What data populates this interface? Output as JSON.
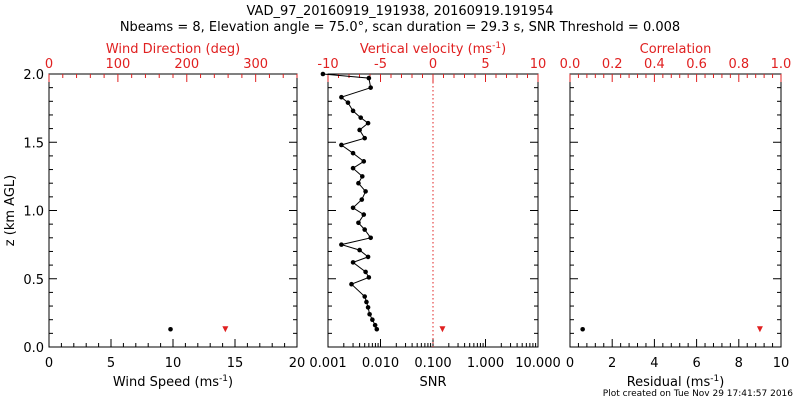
{
  "header": {
    "title": "VAD_97_20160919_191938, 20160919.191954",
    "subtitle": "Nbeams = 8, Elevation angle = 75.0°, scan duration = 29.3 s, SNR Threshold = 0.008"
  },
  "footer": {
    "created": "Plot created on Tue Nov 29 17:41:57 2016"
  },
  "colors": {
    "axis": "#000000",
    "secondary": "#e02020"
  },
  "chart_data": [
    {
      "type": "scatter",
      "panel": "wind",
      "ylabel": "z (km AGL)",
      "ylim": [
        0,
        2
      ],
      "y_ticks": [
        0.0,
        0.5,
        1.0,
        1.5,
        2.0
      ],
      "y_tick_labels": [
        "0.0",
        "0.5",
        "1.0",
        "1.5",
        "2.0"
      ],
      "xlabel": "Wind Speed (ms",
      "xlabel_sup": "-1",
      "xlabel_post": ")",
      "xlim": [
        0,
        20
      ],
      "x_ticks": [
        0,
        5,
        10,
        15,
        20
      ],
      "x_tick_labels": [
        "0",
        "5",
        "10",
        "15",
        "20"
      ],
      "top_label": "Wind Direction (deg)",
      "top_lim": [
        0,
        360
      ],
      "top_ticks": [
        0,
        100,
        200,
        300
      ],
      "top_tick_labels": [
        "0",
        "100",
        "200",
        "300"
      ],
      "series": [
        {
          "axis": "bottom",
          "color": "#000000",
          "points": [
            [
              9.8,
              0.13
            ]
          ]
        },
        {
          "axis": "top",
          "color": "#e02020",
          "points": [
            [
              256,
              0.13
            ]
          ]
        }
      ]
    },
    {
      "type": "line",
      "panel": "snr",
      "ylim": [
        0,
        2
      ],
      "xlabel": "SNR",
      "xscale": "log",
      "xlim": [
        0.001,
        10
      ],
      "x_ticks": [
        0.001,
        0.01,
        0.1,
        1,
        10
      ],
      "x_tick_labels": [
        "0.001",
        "0.010",
        "0.100",
        "1.000",
        "10.000"
      ],
      "top_label": "Vertical velocity (ms",
      "top_label_sup": "-1",
      "top_label_post": ")",
      "top_lim": [
        -10,
        10
      ],
      "top_ticks": [
        -10,
        -5,
        0,
        5,
        10
      ],
      "top_tick_labels": [
        "-10",
        "-5",
        "0",
        "5",
        "10"
      ],
      "zero_line": 0,
      "series": [
        {
          "axis": "bottom",
          "color": "#000000",
          "points": [
            [
              0.0085,
              0.13
            ],
            [
              0.0079,
              0.16
            ],
            [
              0.007,
              0.2
            ],
            [
              0.0062,
              0.24
            ],
            [
              0.0058,
              0.29
            ],
            [
              0.0054,
              0.33
            ],
            [
              0.005,
              0.37
            ],
            [
              0.0028,
              0.46
            ],
            [
              0.006,
              0.51
            ],
            [
              0.0052,
              0.55
            ],
            [
              0.003,
              0.62
            ],
            [
              0.0058,
              0.66
            ],
            [
              0.004,
              0.71
            ],
            [
              0.0018,
              0.75
            ],
            [
              0.0065,
              0.8
            ],
            [
              0.005,
              0.86
            ],
            [
              0.0038,
              0.91
            ],
            [
              0.0048,
              0.97
            ],
            [
              0.003,
              1.02
            ],
            [
              0.0044,
              1.08
            ],
            [
              0.0052,
              1.14
            ],
            [
              0.0038,
              1.2
            ],
            [
              0.0045,
              1.25
            ],
            [
              0.003,
              1.31
            ],
            [
              0.0048,
              1.36
            ],
            [
              0.003,
              1.42
            ],
            [
              0.0018,
              1.48
            ],
            [
              0.005,
              1.53
            ],
            [
              0.004,
              1.59
            ],
            [
              0.0058,
              1.64
            ],
            [
              0.0042,
              1.68
            ],
            [
              0.003,
              1.73
            ],
            [
              0.0024,
              1.79
            ],
            [
              0.0018,
              1.83
            ],
            [
              0.0065,
              1.9
            ],
            [
              0.006,
              1.97
            ],
            [
              0.0008,
              2.0
            ]
          ]
        },
        {
          "axis": "top",
          "color": "#e02020",
          "points": [
            [
              0.9,
              0.13
            ]
          ]
        }
      ]
    },
    {
      "type": "scatter",
      "panel": "residual",
      "ylim": [
        0,
        2
      ],
      "xlabel": "Residual (ms",
      "xlabel_sup": "-1",
      "xlabel_post": ")",
      "xlim": [
        0,
        10
      ],
      "x_ticks": [
        0,
        2,
        4,
        6,
        8,
        10
      ],
      "x_tick_labels": [
        "0",
        "2",
        "4",
        "6",
        "8",
        "10"
      ],
      "top_label": "Correlation",
      "top_lim": [
        0,
        1
      ],
      "top_ticks": [
        0,
        0.2,
        0.4,
        0.6,
        0.8,
        1.0
      ],
      "top_tick_labels": [
        "0.0",
        "0.2",
        "0.4",
        "0.6",
        "0.8",
        "1.0"
      ],
      "series": [
        {
          "axis": "bottom",
          "color": "#000000",
          "points": [
            [
              0.6,
              0.13
            ]
          ]
        },
        {
          "axis": "top",
          "color": "#e02020",
          "points": [
            [
              0.9,
              0.13
            ]
          ]
        }
      ]
    }
  ]
}
